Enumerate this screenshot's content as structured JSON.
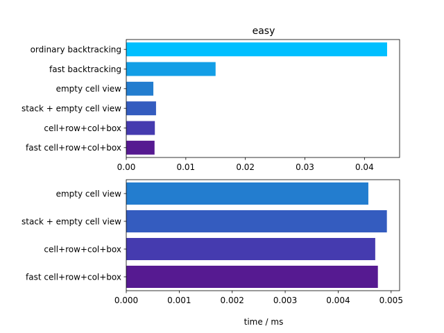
{
  "chart_data": [
    {
      "type": "bar",
      "orientation": "horizontal",
      "title": "easy",
      "xlabel": "",
      "ylabel": "",
      "categories": [
        "ordinary backtracking",
        "fast backtracking",
        "empty cell view",
        "stack + empty cell view",
        "cell+row+col+box",
        "fast cell+row+col+box"
      ],
      "values": [
        0.0438,
        0.015,
        0.00455,
        0.005,
        0.0048,
        0.00475
      ],
      "colors": [
        "#00bfff",
        "#129ee6",
        "#237dcf",
        "#345cbf",
        "#453baf",
        "#561a91"
      ],
      "xlim": [
        0,
        0.0459
      ],
      "xticks": [
        0.0,
        0.01,
        0.02,
        0.03,
        0.04
      ],
      "xtick_labels": [
        "0.00",
        "0.01",
        "0.02",
        "0.03",
        "0.04"
      ]
    },
    {
      "type": "bar",
      "orientation": "horizontal",
      "title": "",
      "xlabel": "time / ms",
      "ylabel": "",
      "categories": [
        "empty cell view",
        "stack + empty cell view",
        "cell+row+col+box",
        "fast cell+row+col+box"
      ],
      "values": [
        0.00457,
        0.00492,
        0.0047,
        0.00475
      ],
      "colors": [
        "#237dcf",
        "#345cbf",
        "#453baf",
        "#561a91"
      ],
      "xlim": [
        0,
        0.00516
      ],
      "xticks": [
        0.0,
        0.001,
        0.002,
        0.003,
        0.004,
        0.005
      ],
      "xtick_labels": [
        "0.000",
        "0.001",
        "0.002",
        "0.003",
        "0.004",
        "0.005"
      ]
    }
  ]
}
